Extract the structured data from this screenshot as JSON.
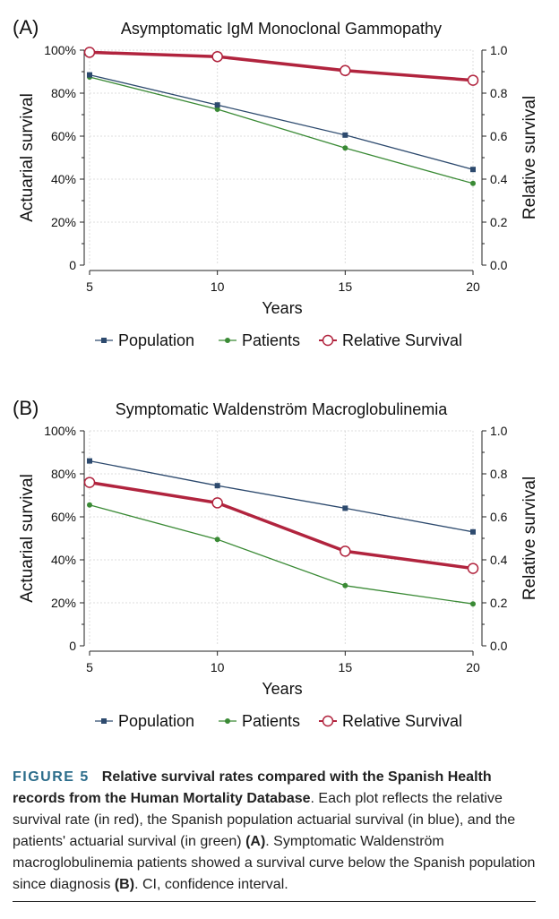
{
  "chart_data": [
    {
      "type": "line",
      "panel_label": "(A)",
      "title": "Asymptomatic IgM Monoclonal Gammopathy",
      "xlabel": "Years",
      "ylabel_left": "Actuarial survival",
      "ylabel_right": "Relative survival",
      "x": [
        5,
        10,
        15,
        20
      ],
      "xlim": [
        5,
        20
      ],
      "ylim_left": [
        0,
        100
      ],
      "ylim_right": [
        0,
        1
      ],
      "xticks": [
        "5",
        "10",
        "15",
        "20"
      ],
      "yticks_left": [
        "0",
        "20%",
        "40%",
        "60%",
        "80%",
        "100%"
      ],
      "yticks_right": [
        "0.0",
        "0.2",
        "0.4",
        "0.6",
        "0.8",
        "1.0"
      ],
      "grid": true,
      "legend_position": "bottom",
      "series": [
        {
          "name": "Population",
          "axis": "left",
          "color": "#2d4a6e",
          "marker": "square",
          "values": [
            88.5,
            74.5,
            60.5,
            44.5
          ]
        },
        {
          "name": "Patients",
          "axis": "left",
          "color": "#3a8a35",
          "marker": "circle",
          "values": [
            87.5,
            72.5,
            54.5,
            38
          ]
        },
        {
          "name": "Relative Survival",
          "axis": "right",
          "color": "#b1243e",
          "marker": "open-circle",
          "values": [
            0.99,
            0.97,
            0.905,
            0.86
          ]
        }
      ]
    },
    {
      "type": "line",
      "panel_label": "(B)",
      "title": "Symptomatic Waldenström Macroglobulinemia",
      "xlabel": "Years",
      "ylabel_left": "Actuarial survival",
      "ylabel_right": "Relative survival",
      "x": [
        5,
        10,
        15,
        20
      ],
      "xlim": [
        5,
        20
      ],
      "ylim_left": [
        0,
        100
      ],
      "ylim_right": [
        0,
        1
      ],
      "xticks": [
        "5",
        "10",
        "15",
        "20"
      ],
      "yticks_left": [
        "0",
        "20%",
        "40%",
        "60%",
        "80%",
        "100%"
      ],
      "yticks_right": [
        "0.0",
        "0.2",
        "0.4",
        "0.6",
        "0.8",
        "1.0"
      ],
      "grid": true,
      "legend_position": "bottom",
      "series": [
        {
          "name": "Population",
          "axis": "left",
          "color": "#2d4a6e",
          "marker": "square",
          "values": [
            86,
            74.5,
            64,
            53
          ]
        },
        {
          "name": "Patients",
          "axis": "left",
          "color": "#3a8a35",
          "marker": "circle",
          "values": [
            65.5,
            49.5,
            28,
            19.5
          ]
        },
        {
          "name": "Relative Survival",
          "axis": "right",
          "color": "#b1243e",
          "marker": "open-circle",
          "values": [
            0.76,
            0.665,
            0.44,
            0.36
          ]
        }
      ]
    }
  ],
  "caption": {
    "label": "FIGURE 5",
    "bold_text": "Relative survival rates compared with the Spanish Health records from the Human Mortality Database",
    "text_1": ". Each plot reflects the relative survival rate (in red), the Spanish population actuarial survival (in blue), and the patients' actuarial survival (in green) ",
    "ref_a": "(A)",
    "text_2": ". Symptomatic Waldenström macroglobulinemia patients showed a survival curve below the Spanish population since diagnosis ",
    "ref_b": "(B)",
    "text_3": ". CI, confidence interval."
  }
}
